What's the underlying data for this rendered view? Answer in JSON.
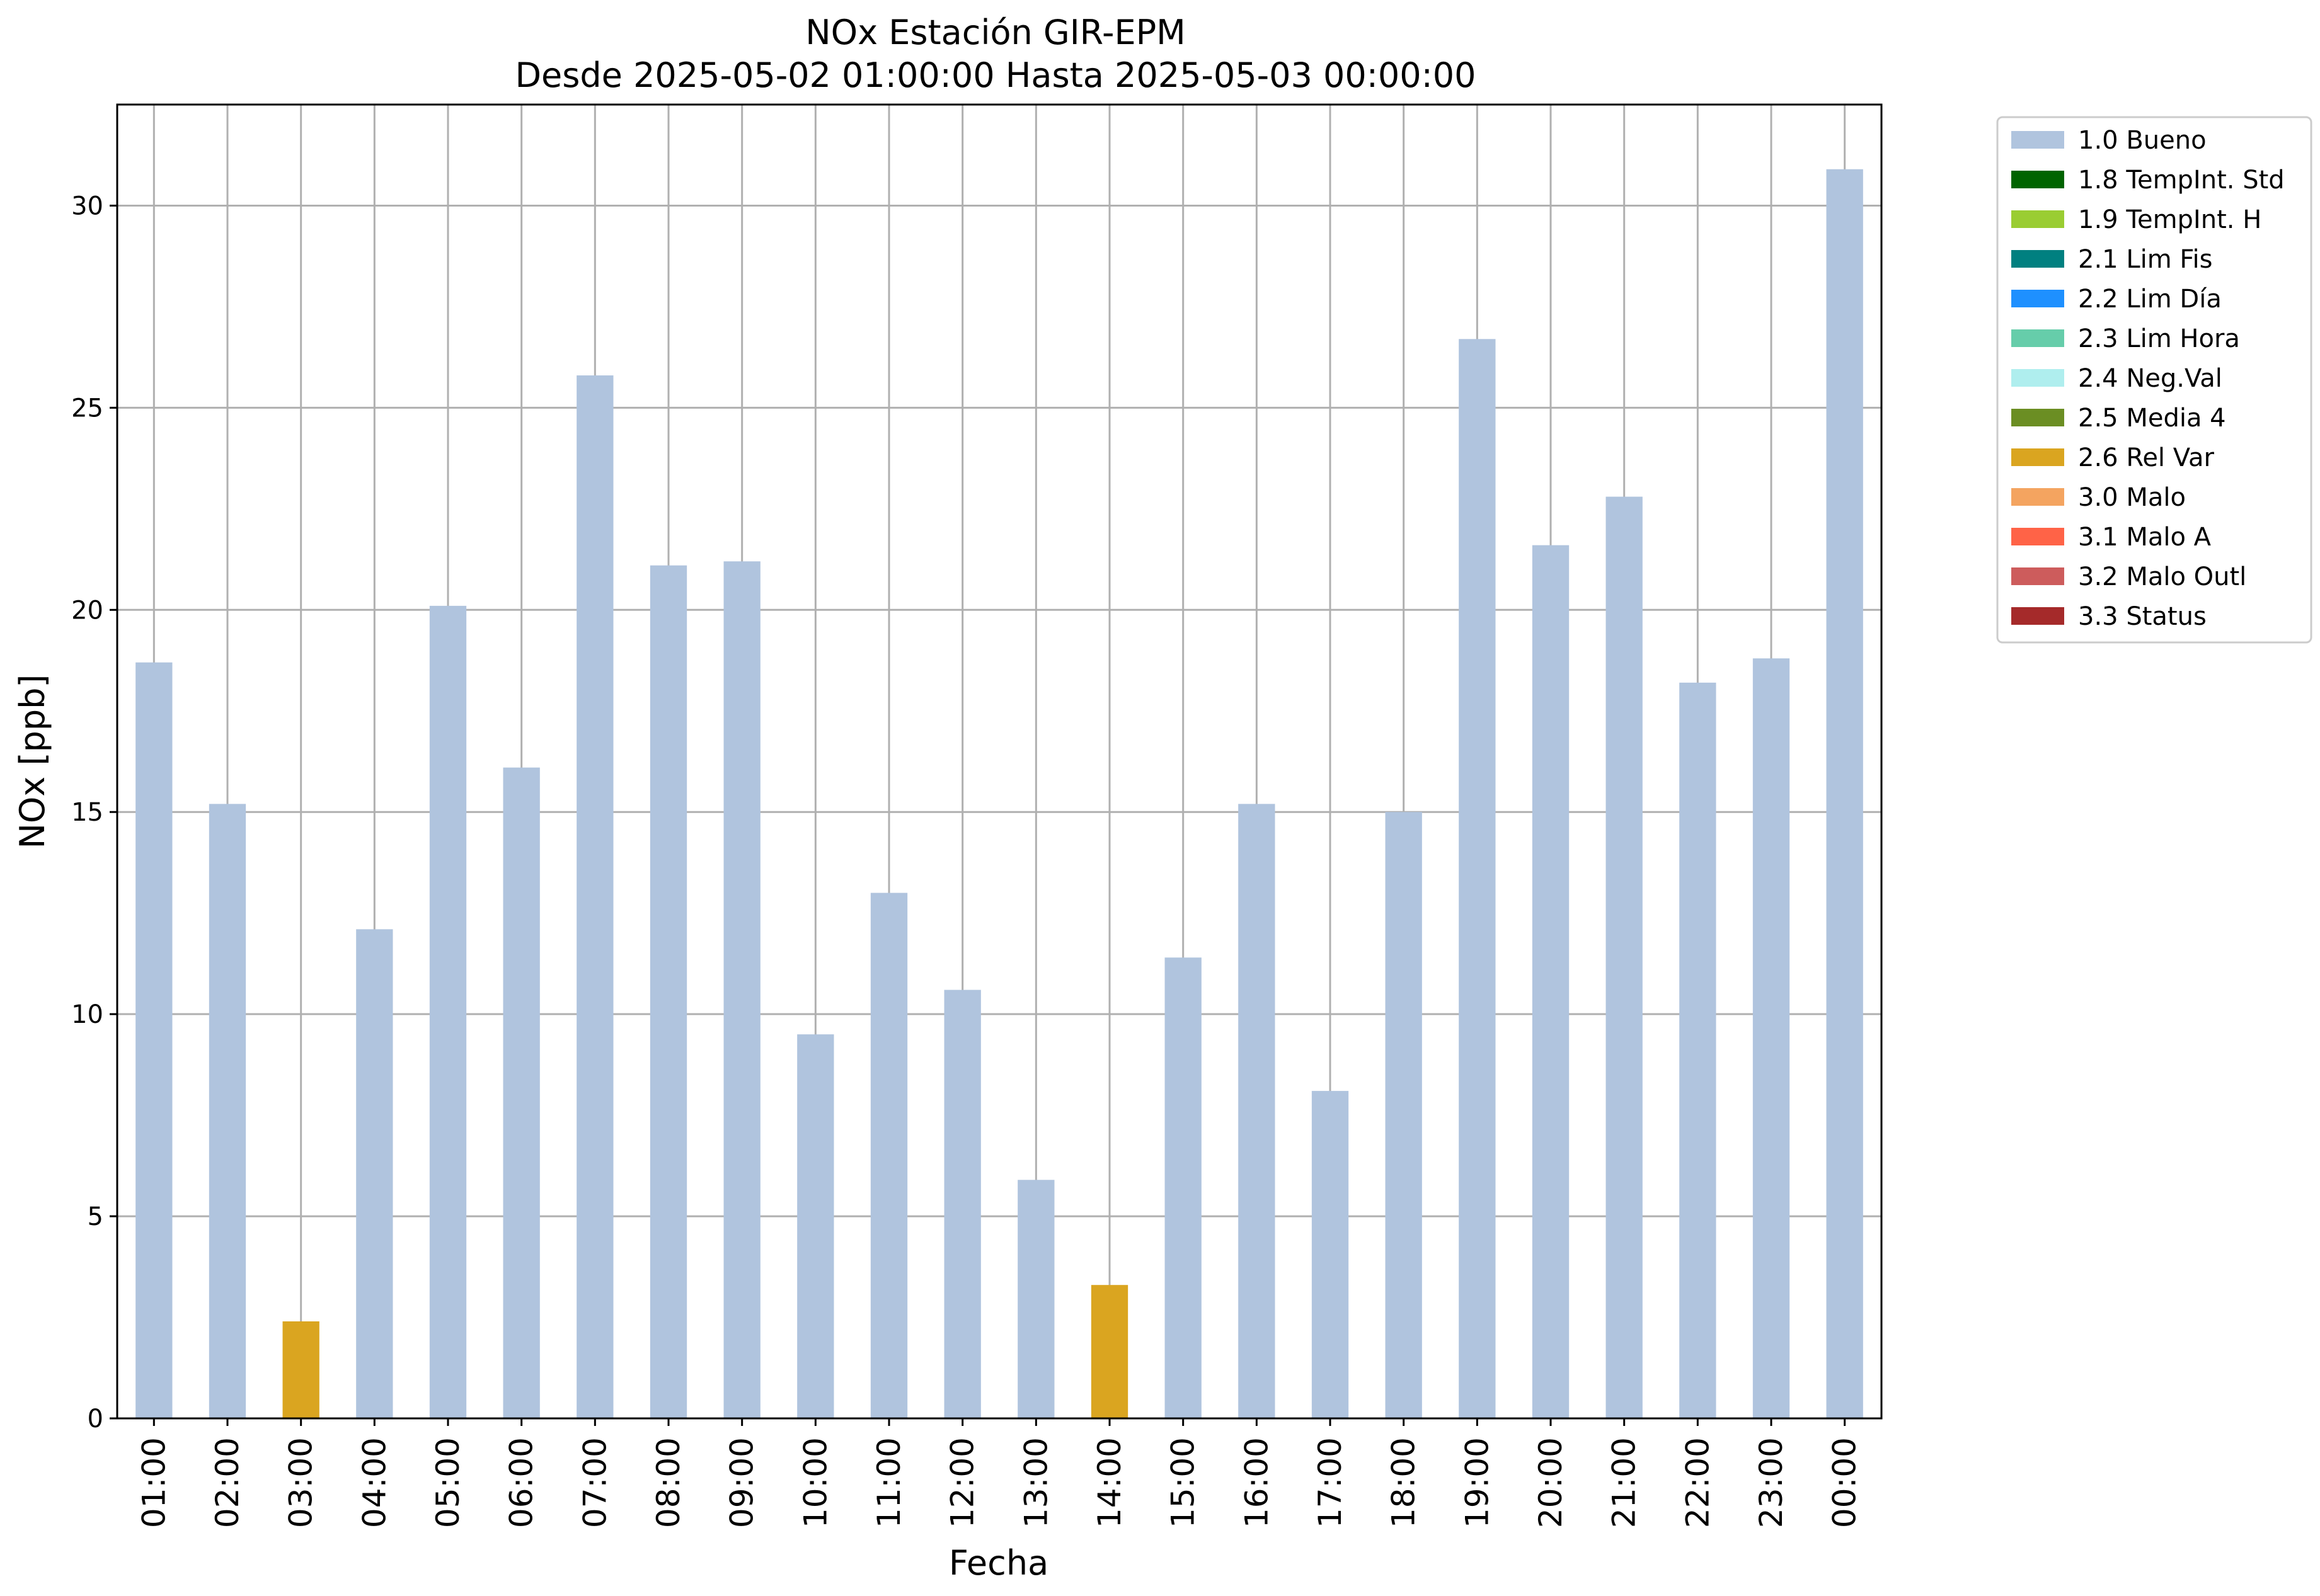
{
  "chart_data": {
    "type": "bar",
    "title": "NOx Estación GIR-EPM",
    "subtitle": "Desde 2025-05-02 01:00:00 Hasta 2025-05-03 00:00:00",
    "xlabel": "Fecha",
    "ylabel": "NOx [ppb]",
    "ylim": [
      0,
      32.5
    ],
    "yticks": [
      0,
      5,
      10,
      15,
      20,
      25,
      30
    ],
    "grid": true,
    "legend_position": "outside-top-right",
    "categories": [
      "01:00",
      "02:00",
      "03:00",
      "04:00",
      "05:00",
      "06:00",
      "07:00",
      "08:00",
      "09:00",
      "10:00",
      "11:00",
      "12:00",
      "13:00",
      "14:00",
      "15:00",
      "16:00",
      "17:00",
      "18:00",
      "19:00",
      "20:00",
      "21:00",
      "22:00",
      "23:00",
      "00:00"
    ],
    "values": [
      18.7,
      15.2,
      2.4,
      12.1,
      20.1,
      16.1,
      25.8,
      21.1,
      21.2,
      9.5,
      13.0,
      10.6,
      5.9,
      3.3,
      11.4,
      15.2,
      8.1,
      15.0,
      26.7,
      21.6,
      22.8,
      18.2,
      18.8,
      30.9
    ],
    "flags": [
      "1.0 Bueno",
      "1.0 Bueno",
      "2.6 Rel Var",
      "1.0 Bueno",
      "1.0 Bueno",
      "1.0 Bueno",
      "1.0 Bueno",
      "1.0 Bueno",
      "1.0 Bueno",
      "1.0 Bueno",
      "1.0 Bueno",
      "1.0 Bueno",
      "1.0 Bueno",
      "2.6 Rel Var",
      "1.0 Bueno",
      "1.0 Bueno",
      "1.0 Bueno",
      "1.0 Bueno",
      "1.0 Bueno",
      "1.0 Bueno",
      "1.0 Bueno",
      "1.0 Bueno",
      "1.0 Bueno",
      "1.0 Bueno"
    ],
    "legend": [
      {
        "label": "1.0 Bueno",
        "color": "#b0c4de"
      },
      {
        "label": "1.8 TempInt. Std",
        "color": "#006400"
      },
      {
        "label": "1.9 TempInt. H",
        "color": "#9acd32"
      },
      {
        "label": "2.1 Lim Fis",
        "color": "#008080"
      },
      {
        "label": "2.2 Lim Día",
        "color": "#1e90ff"
      },
      {
        "label": "2.3 Lim Hora",
        "color": "#66cdaa"
      },
      {
        "label": "2.4 Neg.Val",
        "color": "#afeeee"
      },
      {
        "label": "2.5 Media 4",
        "color": "#6b8e23"
      },
      {
        "label": "2.6 Rel Var",
        "color": "#daa520"
      },
      {
        "label": "3.0 Malo",
        "color": "#f4a460"
      },
      {
        "label": "3.1 Malo A",
        "color": "#ff6347"
      },
      {
        "label": "3.2 Malo Outl",
        "color": "#cd5c5c"
      },
      {
        "label": "3.3 Status",
        "color": "#a52a2a"
      }
    ]
  }
}
